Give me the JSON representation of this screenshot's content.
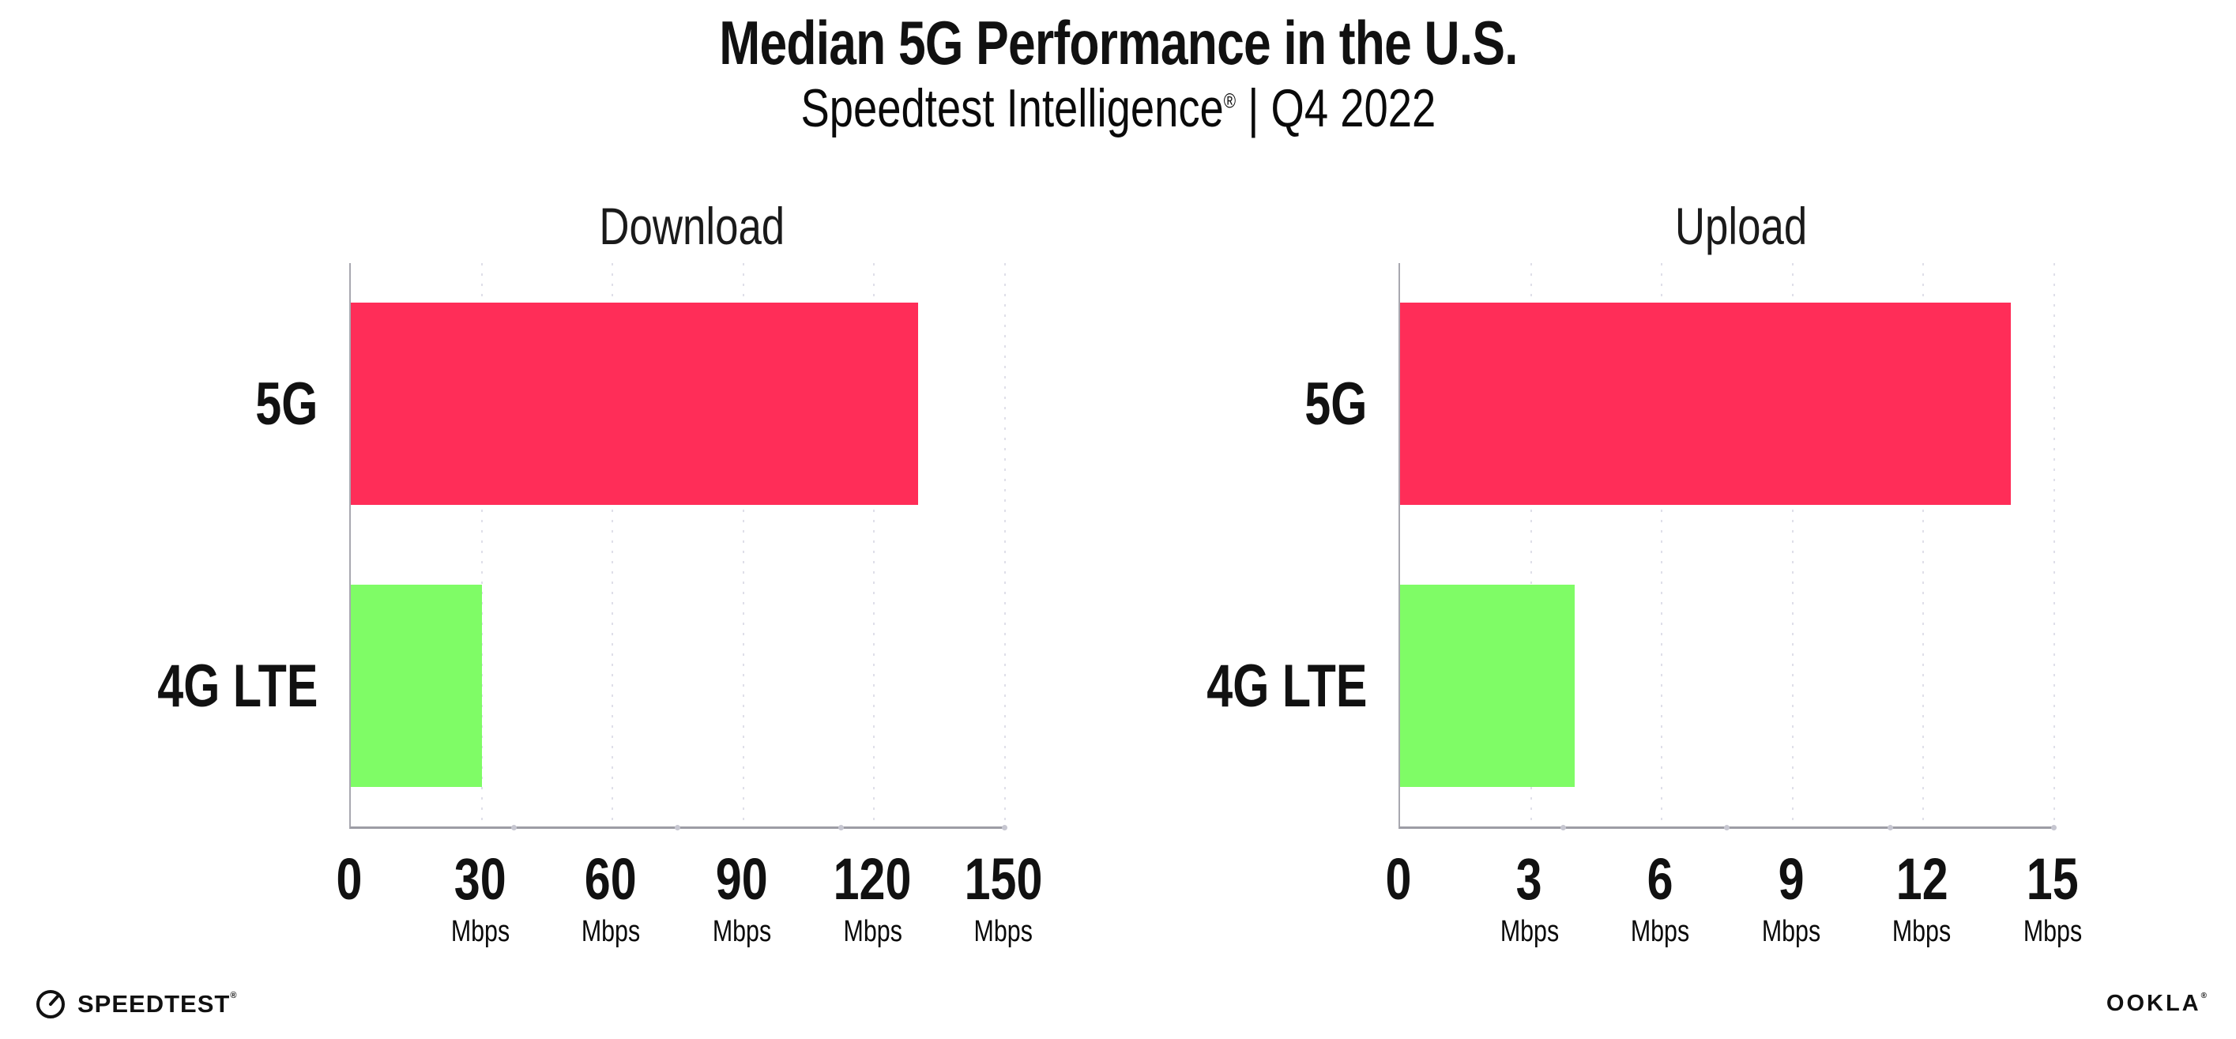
{
  "header": {
    "title": "Median 5G Performance in the U.S.",
    "subtitle_brand": "Speedtest Intelligence",
    "subtitle_registered": "®",
    "subtitle_separator": "|",
    "subtitle_period": "Q4 2022"
  },
  "chart_data": [
    {
      "type": "bar",
      "orientation": "horizontal",
      "title": "Download",
      "categories": [
        "5G",
        "4G LTE"
      ],
      "values": [
        130,
        30
      ],
      "unit": "Mbps",
      "xticks": [
        0,
        30,
        60,
        90,
        120,
        150
      ],
      "xlim": [
        0,
        150
      ],
      "grid": "dotted-vertical",
      "legend": "none",
      "bar_colors": [
        "#FF2D58",
        "#7FFC66"
      ]
    },
    {
      "type": "bar",
      "orientation": "horizontal",
      "title": "Upload",
      "categories": [
        "5G",
        "4G LTE"
      ],
      "values": [
        14,
        4
      ],
      "unit": "Mbps",
      "xticks": [
        0,
        3,
        6,
        9,
        12,
        15
      ],
      "xlim": [
        0,
        15
      ],
      "grid": "dotted-vertical",
      "legend": "none",
      "bar_colors": [
        "#FF2D58",
        "#7FFC66"
      ]
    }
  ],
  "footer": {
    "speedtest_label": "SPEEDTEST",
    "speedtest_mark": "®",
    "ookla_label": "OOKLA",
    "ookla_mark": "®"
  },
  "colors": {
    "bar_5g": "#FF2D58",
    "bar_4g_lte": "#7FFC66",
    "axis_line": "#9d9da5",
    "gridline": "#dfdfe9",
    "text": "#111111"
  }
}
